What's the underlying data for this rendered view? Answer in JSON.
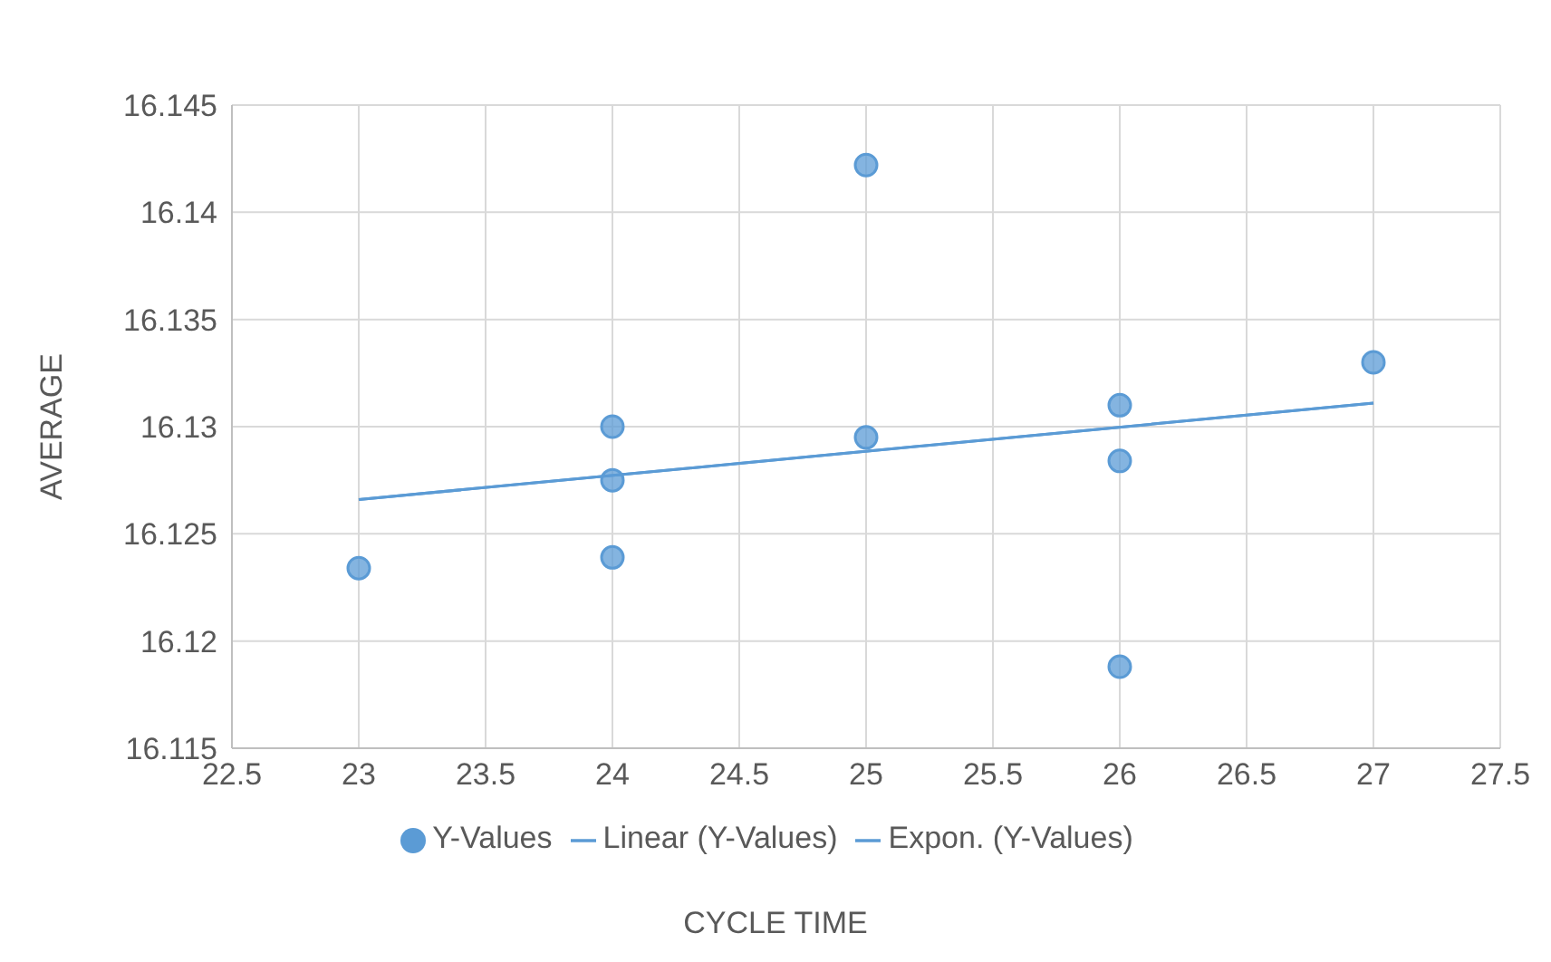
{
  "chart_data": {
    "type": "scatter",
    "xlabel": "CYCLE TIME",
    "ylabel": "AVERAGE",
    "xlim": [
      22.5,
      27.5
    ],
    "xticks": [
      22.5,
      23,
      23.5,
      24,
      24.5,
      25,
      25.5,
      26,
      26.5,
      27,
      27.5
    ],
    "ylim": [
      16.115,
      16.145
    ],
    "yticks": [
      16.115,
      16.12,
      16.125,
      16.13,
      16.135,
      16.14,
      16.145
    ],
    "grid": true,
    "legend": "bottom",
    "series": [
      {
        "name": "Y-Values",
        "marker": "circle",
        "color": "#5b9bd5",
        "x": [
          23,
          24,
          24,
          24,
          25,
          25,
          26,
          26,
          26,
          27
        ],
        "values": [
          16.1234,
          16.13,
          16.1275,
          16.1239,
          16.1422,
          16.1295,
          16.131,
          16.1284,
          16.1188,
          16.133
        ]
      },
      {
        "name": "Linear (Y-Values)",
        "type": "line",
        "marker": "none",
        "color": "#5b9bd5",
        "x": [
          23,
          27
        ],
        "values": [
          16.1266,
          16.1311
        ]
      },
      {
        "name": "Expon. (Y-Values)",
        "type": "line",
        "marker": "none",
        "color": "#5b9bd5",
        "x": [
          23,
          27
        ],
        "values": [
          16.1266,
          16.1311
        ]
      }
    ]
  }
}
